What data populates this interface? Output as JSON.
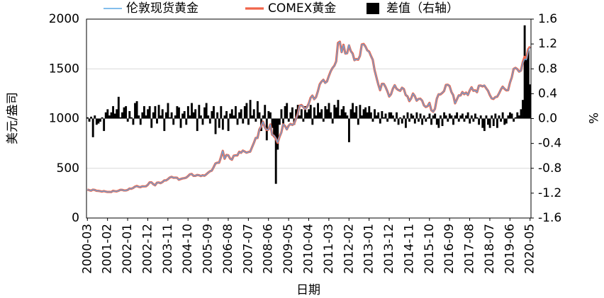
{
  "chart_data": {
    "type": "line",
    "y_label": "美元/盎司",
    "y2_label": "%",
    "x_label": "日期",
    "categories": [
      "2000-03",
      null,
      null,
      null,
      null,
      null,
      null,
      null,
      null,
      null,
      null,
      "2001-02",
      null,
      null,
      null,
      null,
      null,
      null,
      null,
      null,
      null,
      null,
      "2002-01",
      null,
      null,
      null,
      null,
      null,
      null,
      null,
      null,
      null,
      null,
      "2002-12",
      null,
      null,
      null,
      null,
      null,
      null,
      null,
      null,
      null,
      null,
      "2003-11",
      null,
      null,
      null,
      null,
      null,
      null,
      null,
      null,
      null,
      null,
      "2004-10",
      null,
      null,
      null,
      null,
      null,
      null,
      null,
      null,
      null,
      null,
      "2005-09",
      null,
      null,
      null,
      null,
      null,
      null,
      null,
      null,
      null,
      null,
      "2006-08",
      null,
      null,
      null,
      null,
      null,
      null,
      null,
      null,
      null,
      null,
      "2007-07",
      null,
      null,
      null,
      null,
      null,
      null,
      null,
      null,
      null,
      null,
      "2008-06",
      null,
      null,
      null,
      null,
      null,
      null,
      null,
      null,
      null,
      null,
      "2009-05",
      null,
      null,
      null,
      null,
      null,
      null,
      null,
      null,
      null,
      null,
      "2010-04",
      null,
      null,
      null,
      null,
      null,
      null,
      null,
      null,
      null,
      null,
      "2011-03",
      null,
      null,
      null,
      null,
      null,
      null,
      null,
      null,
      null,
      null,
      "2012-02",
      null,
      null,
      null,
      null,
      null,
      null,
      null,
      null,
      null,
      null,
      "2013-01",
      null,
      null,
      null,
      null,
      null,
      null,
      null,
      null,
      null,
      null,
      "2013-12",
      null,
      null,
      null,
      null,
      null,
      null,
      null,
      null,
      null,
      null,
      "2014-11",
      null,
      null,
      null,
      null,
      null,
      null,
      null,
      null,
      null,
      null,
      "2015-10",
      null,
      null,
      null,
      null,
      null,
      null,
      null,
      null,
      null,
      null,
      "2016-09",
      null,
      null,
      null,
      null,
      null,
      null,
      null,
      null,
      null,
      null,
      "2017-08",
      null,
      null,
      null,
      null,
      null,
      null,
      null,
      null,
      null,
      null,
      "2018-07",
      null,
      null,
      null,
      null,
      null,
      null,
      null,
      null,
      null,
      null,
      "2019-06",
      null,
      null,
      null,
      null,
      null,
      null,
      null,
      null,
      null,
      null,
      "2020-05"
    ],
    "series": [
      {
        "name": "差值（右轴）",
        "type": "bar",
        "axis": "y2",
        "color": "#000000",
        "values": [
          0.02,
          -0.05,
          0.03,
          -0.3,
          0.05,
          -0.1,
          -0.08,
          -0.05,
          0.02,
          -0.2,
          0.1,
          0.15,
          0.05,
          0.1,
          0.2,
          0.08,
          0.15,
          0.35,
          0.02,
          0.1,
          0.18,
          0.2,
          -0.05,
          0.12,
          0.02,
          -0.1,
          0.25,
          0.28,
          0.05,
          -0.1,
          0.1,
          0.2,
          0.05,
          0.15,
          0.2,
          -0.15,
          0.1,
          0.2,
          -0.08,
          0.22,
          0.05,
          0.15,
          -0.2,
          0.1,
          0.25,
          0.02,
          0.1,
          -0.1,
          0.05,
          0.2,
          0.18,
          -0.15,
          0.08,
          0.12,
          -0.1,
          0.2,
          0.05,
          0.25,
          0.1,
          0.15,
          -0.2,
          0.22,
          0.05,
          -0.1,
          0.18,
          0.25,
          0.05,
          -0.08,
          0.12,
          0.2,
          -0.25,
          0.1,
          -0.15,
          0.2,
          -0.18,
          0.05,
          0.12,
          -0.2,
          0.08,
          0.15,
          0.05,
          0.2,
          -0.1,
          0.1,
          0.15,
          -0.08,
          0.2,
          0.25,
          -0.1,
          0.3,
          0.05,
          0.15,
          -0.05,
          0.28,
          0.1,
          -0.2,
          0.05,
          0.22,
          -0.35,
          0.12,
          0.1,
          -0.15,
          -0.3,
          -1.05,
          -0.5,
          -0.1,
          0.15,
          -0.1,
          0.2,
          0.25,
          -0.05,
          0.1,
          0.18,
          -0.1,
          0.15,
          0.22,
          0.05,
          0.15,
          -0.05,
          0.2,
          0.1,
          0.15,
          0.22,
          -0.1,
          0.18,
          0.05,
          0.25,
          0.1,
          0.15,
          -0.05,
          0.2,
          0.15,
          0.25,
          0.1,
          -0.08,
          0.22,
          0.18,
          0.3,
          0.05,
          0.15,
          0.2,
          0.1,
          0.05,
          -0.38,
          0.15,
          0.25,
          0.1,
          0.2,
          -0.1,
          0.22,
          0.05,
          0.15,
          0.18,
          0.1,
          0.2,
          0.1,
          -0.05,
          0.15,
          0.05,
          0.1,
          -0.08,
          0.12,
          0.02,
          0.08,
          -0.05,
          0.1,
          0.1,
          0.05,
          -0.05,
          0.1,
          -0.1,
          0.02,
          -0.08,
          0.05,
          -0.15,
          0.1,
          -0.05,
          0.08,
          0.05,
          -0.08,
          0.1,
          -0.05,
          0.08,
          -0.1,
          0.05,
          -0.05,
          0.02,
          0.08,
          -0.1,
          0.05,
          0.08,
          -0.1,
          -0.15,
          0.05,
          -0.12,
          0.1,
          0.05,
          -0.05,
          0.08,
          0.05,
          -0.1,
          0.05,
          0.1,
          -0.05,
          0.05,
          0.08,
          -0.05,
          0.05,
          0.1,
          -0.08,
          0.05,
          -0.05,
          0.08,
          0.02,
          -0.1,
          0.05,
          -0.15,
          -0.2,
          0.05,
          -0.1,
          -0.15,
          0.05,
          -0.12,
          0.08,
          -0.15,
          0.05,
          -0.05,
          0.1,
          -0.1,
          -0.08,
          0.05,
          0.1,
          0.08,
          -0.05,
          0.02,
          0.1,
          0.05,
          0.15,
          0.3,
          1.5,
          1.0,
          1.1,
          0.55
        ]
      },
      {
        "name": "COMEX黄金",
        "type": "line",
        "color": "#f0654a",
        "values": [
          286,
          280,
          275,
          285,
          282,
          274,
          273,
          270,
          266,
          271,
          266,
          262,
          263,
          261,
          273,
          270,
          268,
          274,
          283,
          283,
          277,
          277,
          282,
          296,
          294,
          302,
          315,
          322,
          314,
          310,
          319,
          318,
          319,
          333,
          358,
          359,
          340,
          329,
          355,
          357,
          351,
          361,
          378,
          378,
          390,
          407,
          414,
          405,
          406,
          405,
          385,
          392,
          398,
          401,
          406,
          421,
          439,
          443,
          424,
          424,
          433,
          430,
          422,
          430,
          425,
          439,
          456,
          470,
          477,
          511,
          548,
          556,
          556,
          611,
          675,
          596,
          634,
          631,
          598,
          586,
          627,
          630,
          630,
          666,
          656,
          678,
          668,
          657,
          664,
          667,
          712,
          755,
          805,
          805,
          890,
          920,
          968,
          911,
          885,
          890,
          940,
          838,
          826,
          798,
          756,
          815,
          859,
          942,
          926,
          892,
          928,
          946,
          936,
          948,
          998,
          1045,
          1128,
          1136,
          1117,
          1097,
          1114,
          1150,
          1208,
          1231,
          1195,
          1216,
          1274,
          1344,
          1372,
          1390,
          1359,
          1374,
          1428,
          1475,
          1509,
          1531,
          1575,
          1761,
          1773,
          1668,
          1742,
          1654,
          1657,
          1736,
          1678,
          1654,
          1587,
          1599,
          1592,
          1630,
          1745,
          1750,
          1725,
          1686,
          1674,
          1630,
          1591,
          1487,
          1415,
          1344,
          1285,
          1349,
          1349,
          1317,
          1274,
          1222,
          1245,
          1301,
          1335,
          1300,
          1287,
          1279,
          1310,
          1297,
          1237,
          1223,
          1175,
          1203,
          1252,
          1226,
          1180,
          1197,
          1200,
          1180,
          1132,
          1116,
          1125,
          1158,
          1085,
          1069,
          1098,
          1199,
          1244,
          1243,
          1258,
          1277,
          1338,
          1340,
          1327,
          1267,
          1235,
          1153,
          1193,
          1233,
          1232,
          1267,
          1245,
          1261,
          1237,
          1282,
          1315,
          1279,
          1284,
          1265,
          1330,
          1332,
          1323,
          1332,
          1305,
          1280,
          1236,
          1203,
          1197,
          1216,
          1219,
          1251,
          1290,
          1321,
          1299,
          1284,
          1285,
          1360,
          1414,
          1499,
          1510,
          1497,
          1472,
          1482,
          1565,
          1621,
          1607,
          1698,
          1724
        ]
      },
      {
        "name": "伦敦现货黄金",
        "type": "line",
        "color": "#5aa9e6",
        "values": [
          286,
          280,
          275,
          286,
          282,
          274,
          273,
          270,
          266,
          272,
          266,
          262,
          263,
          261,
          272,
          270,
          268,
          273,
          283,
          283,
          276,
          276,
          282,
          296,
          294,
          302,
          314,
          321,
          314,
          310,
          319,
          317,
          319,
          333,
          357,
          359,
          340,
          328,
          355,
          356,
          351,
          360,
          379,
          378,
          389,
          407,
          414,
          405,
          406,
          404,
          384,
          392,
          398,
          400,
          406,
          420,
          439,
          442,
          424,
          423,
          434,
          429,
          422,
          430,
          424,
          438,
          456,
          470,
          476,
          510,
          549,
          555,
          557,
          610,
          676,
          596,
          633,
          632,
          598,
          585,
          627,
          629,
          631,
          665,
          655,
          679,
          667,
          655,
          665,
          665,
          712,
          754,
          806,
          803,
          889,
          922,
          968,
          909,
          888,
          889,
          939,
          839,
          829,
          806,
          760,
          816,
          858,
          943,
          924,
          890,
          928,
          945,
          934,
          949,
          996,
          1043,
          1127,
          1134,
          1118,
          1095,
          1113,
          1148,
          1205,
          1232,
          1193,
          1215,
          1271,
          1343,
          1370,
          1391,
          1356,
          1372,
          1424,
          1474,
          1510,
          1528,
          1572,
          1756,
          1772,
          1665,
          1739,
          1652,
          1656,
          1743,
          1675,
          1650,
          1585,
          1596,
          1594,
          1626,
          1744,
          1747,
          1722,
          1684,
          1671,
          1628,
          1592,
          1485,
          1414,
          1343,
          1286,
          1347,
          1349,
          1316,
          1275,
          1221,
          1244,
          1300,
          1336,
          1299,
          1288,
          1279,
          1311,
          1296,
          1239,
          1222,
          1176,
          1202,
          1251,
          1227,
          1179,
          1198,
          1199,
          1181,
          1131,
          1117,
          1125,
          1157,
          1086,
          1068,
          1097,
          1200,
          1246,
          1242,
          1260,
          1276,
          1337,
          1341,
          1326,
          1266,
          1236,
          1152,
          1192,
          1234,
          1231,
          1266,
          1246,
          1260,
          1236,
          1283,
          1314,
          1280,
          1283,
          1265,
          1331,
          1331,
          1325,
          1335,
          1304,
          1281,
          1238,
          1202,
          1198,
          1215,
          1221,
          1250,
          1291,
          1320,
          1300,
          1285,
          1284,
          1359,
          1413,
          1500,
          1510,
          1495,
          1471,
          1480,
          1560,
          1597,
          1591,
          1680,
          1715
        ]
      }
    ],
    "ylim": [
      0,
      2000
    ],
    "yticks": [
      0,
      500,
      1000,
      1500,
      2000
    ],
    "y2lim": [
      -1.6,
      1.6
    ],
    "y2ticks": [
      -1.6,
      -1.2,
      -0.8,
      -0.4,
      {
        "value": 0,
        "label": "0.0"
      },
      0.4,
      0.8,
      1.2,
      1.6
    ],
    "grid": true,
    "legend": "top"
  }
}
